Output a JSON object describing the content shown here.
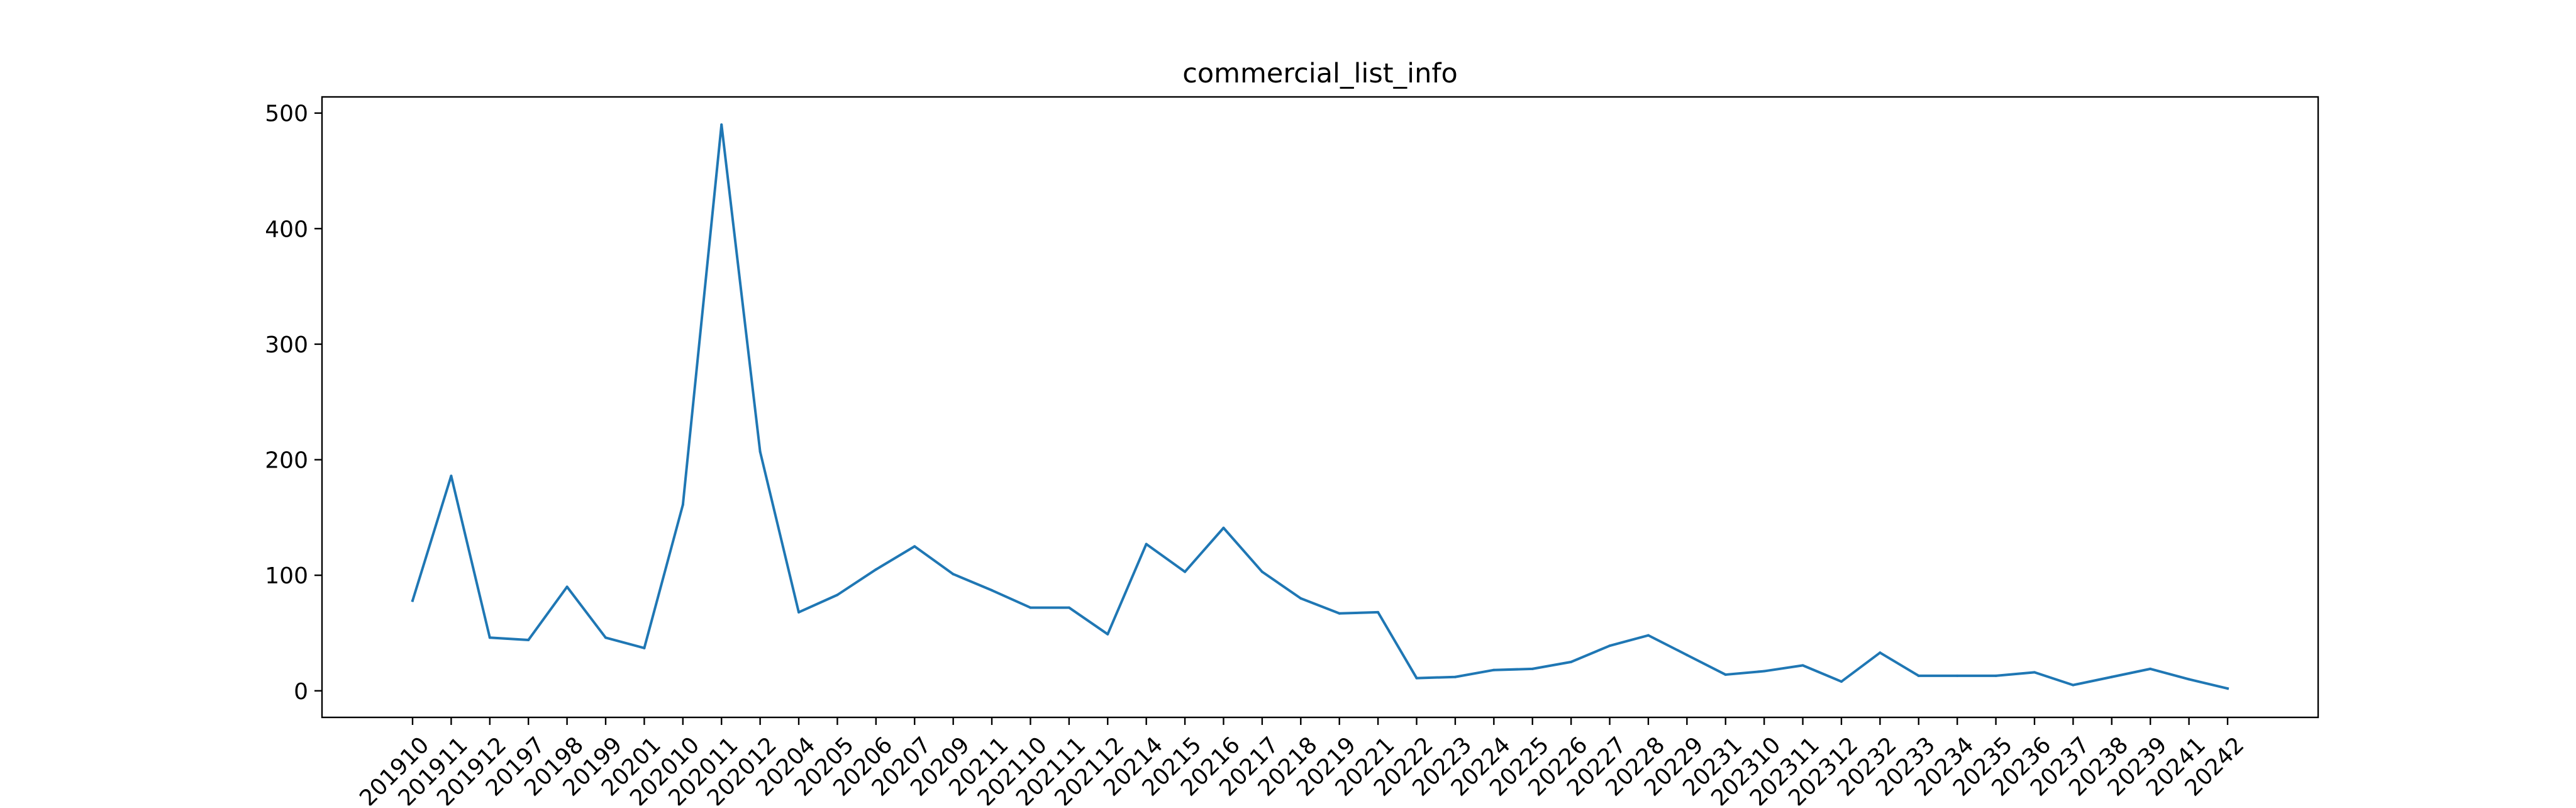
{
  "chart_data": {
    "type": "line",
    "title": "commercial_list_info",
    "xlabel": "",
    "ylabel": "",
    "categories": [
      "201910",
      "201911",
      "201912",
      "20197",
      "20198",
      "20199",
      "20201",
      "202010",
      "202011",
      "202012",
      "20204",
      "20205",
      "20206",
      "20207",
      "20209",
      "20211",
      "202110",
      "202111",
      "202112",
      "20214",
      "20215",
      "20216",
      "20217",
      "20218",
      "20219",
      "20221",
      "20222",
      "20223",
      "20224",
      "20225",
      "20226",
      "20227",
      "20228",
      "20229",
      "20231",
      "202310",
      "202311",
      "202312",
      "20232",
      "20233",
      "20234",
      "20235",
      "20236",
      "20237",
      "20238",
      "20239",
      "20241",
      "20242"
    ],
    "series": [
      {
        "values": [
          78,
          186,
          46,
          44,
          90,
          46,
          37,
          161,
          490,
          207,
          68,
          83,
          105,
          125,
          101,
          87,
          72,
          72,
          49,
          127,
          103,
          141,
          103,
          80,
          67,
          68,
          11,
          12,
          18,
          19,
          25,
          39,
          48,
          31,
          14,
          17,
          22,
          8,
          33,
          13,
          13,
          13,
          16,
          5,
          12,
          19,
          10,
          2
        ],
        "color": "#1f77b4"
      }
    ],
    "yticks": [
      0,
      100,
      200,
      300,
      400,
      500
    ],
    "ylim": [
      -23,
      514
    ],
    "grid": false,
    "legend": "none"
  }
}
